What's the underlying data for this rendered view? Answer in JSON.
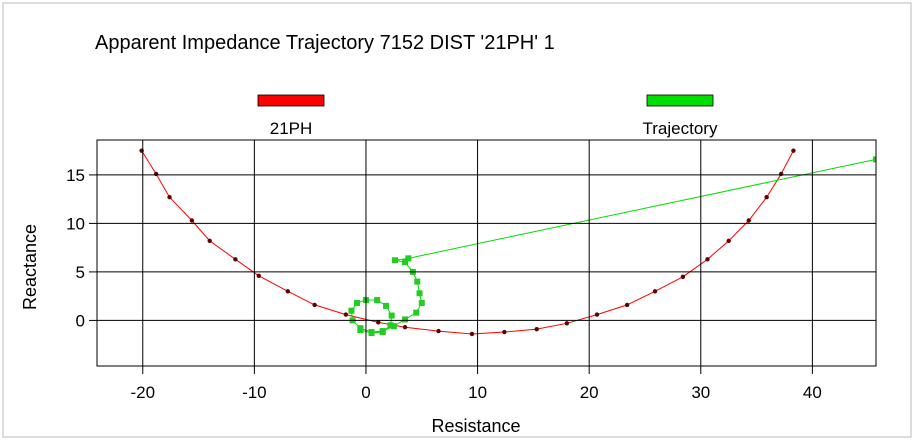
{
  "chart_data": {
    "type": "line",
    "title": "Apparent Impedance Trajectory 7152 DIST '21PH' 1",
    "x_label": "Resistance",
    "y_label": "Reactance",
    "xlim": [
      -24.1,
      45.7
    ],
    "ylim": [
      -4.7,
      18.6
    ],
    "xticks": [
      -20,
      -10,
      0,
      10,
      20,
      30,
      40
    ],
    "yticks": [
      0,
      5,
      10,
      15
    ],
    "grid": true,
    "series": [
      {
        "name": "21PH",
        "color": "#ff0000",
        "marker_color": "#600000",
        "x": [
          -20.1,
          -18.8,
          -17.6,
          -15.6,
          -14,
          -11.7,
          -9.6,
          -7,
          -4.6,
          -1.8,
          1.1,
          3.5,
          6.5,
          9.5,
          12.4,
          15.3,
          18,
          20.7,
          23.4,
          25.9,
          28.4,
          30.6,
          32.5,
          34.3,
          35.9,
          37.2,
          38.3
        ],
        "y": [
          17.5,
          15.1,
          12.7,
          10.3,
          8.2,
          6.3,
          4.6,
          3.0,
          1.6,
          0.6,
          -0.2,
          -0.7,
          -1.1,
          -1.4,
          -1.2,
          -0.9,
          -0.3,
          0.6,
          1.6,
          3.0,
          4.5,
          6.3,
          8.2,
          10.3,
          12.7,
          15.1,
          17.5
        ]
      },
      {
        "name": "Trajectory",
        "color": "#00dd00",
        "marker_color": "#22cc22",
        "x": [
          45.7,
          3.8,
          2.6,
          3.5,
          4.2,
          4.6,
          4.8,
          5,
          4.5,
          3.5,
          2.5,
          1.5,
          0.5,
          -0.5,
          -1.2,
          -1.3,
          -0.8,
          0,
          1,
          1.8,
          2.3,
          2.2,
          1.5,
          0.5,
          -0.5
        ],
        "y": [
          16.6,
          6.4,
          6.2,
          6.0,
          5,
          4,
          2.8,
          1.8,
          0.8,
          0.1,
          -0.6,
          -1.1,
          -1.2,
          -0.8,
          0,
          1,
          1.8,
          2.1,
          2.1,
          1.5,
          0.5,
          -0.5,
          -1.2,
          -1.3,
          -1.0
        ]
      }
    ]
  }
}
